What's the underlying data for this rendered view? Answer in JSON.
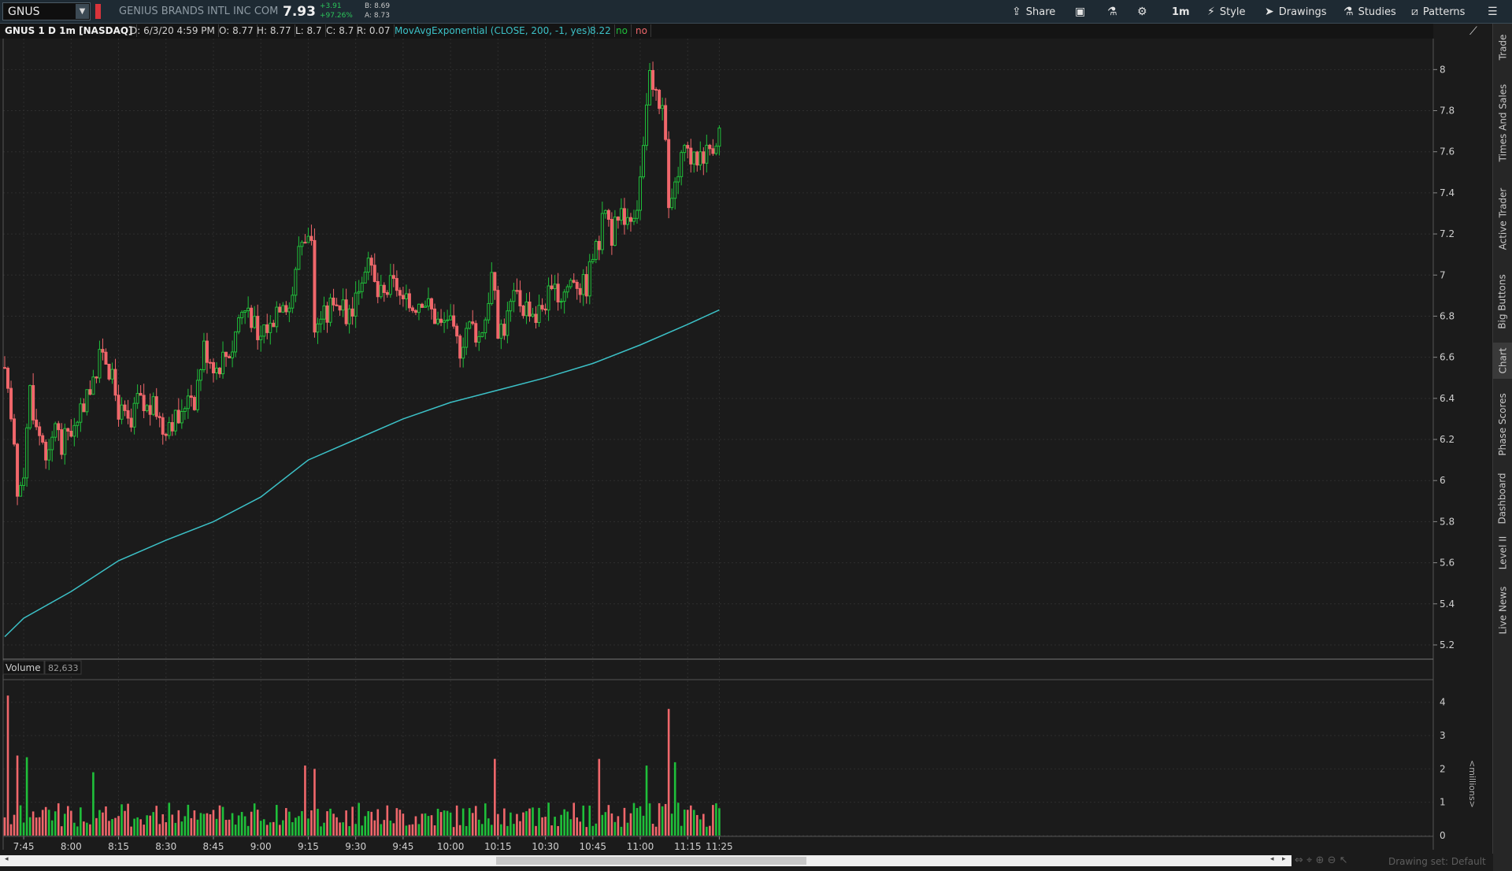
{
  "symbol": "GNUS",
  "company": "GENIUS BRANDS INTL INC COM",
  "last_price": "7.93",
  "net_change": "+3.91",
  "pct_change": "+97.26%",
  "bid": "B: 8.69",
  "ask": "A: 8.73",
  "toolbar": {
    "share": "Share",
    "aggregation": "1m",
    "style": "Style",
    "drawings": "Drawings",
    "studies": "Studies",
    "patterns": "Patterns"
  },
  "info": {
    "title": "GNUS 1 D 1m [NASDAQ]",
    "datetime": "D: 6/3/20 4:59 PM",
    "open": "O: 8.77",
    "high": "H: 8.77",
    "low": "L: 8.7",
    "close": "C: 8.7",
    "range": "R: 0.07",
    "study": "MovAvgExponential (CLOSE, 200, -1, yes)",
    "study_value": "8.22",
    "no1": "no",
    "no2": "no"
  },
  "volume_label": "Volume",
  "volume_value": "82,633",
  "volume_unit": "<millions>",
  "side_tabs": [
    "Trade",
    "Times And Sales",
    "Active Trader",
    "Big Buttons",
    "Chart",
    "Phase Scores",
    "Dashboard",
    "Level II",
    "Live News"
  ],
  "drawing_set": "Drawing set: Default",
  "colors": {
    "up": "#1fbf3a",
    "down": "#f0676b",
    "ema": "#3cc1c7",
    "background": "#1b1b1b"
  },
  "chart_data": {
    "type": "candlestick",
    "price_axis_ticks": [
      5.2,
      5.4,
      5.6,
      5.8,
      6,
      6.2,
      6.4,
      6.6,
      6.8,
      7,
      7.2,
      7.4,
      7.6,
      7.8,
      8
    ],
    "ylim": [
      5.15,
      8.12
    ],
    "volume_axis_ticks": [
      0,
      1,
      2,
      3,
      4
    ],
    "volume_ylim": [
      0,
      4.3
    ],
    "time_ticks": [
      "7:45",
      "8:00",
      "8:15",
      "8:30",
      "8:45",
      "9:00",
      "9:15",
      "9:30",
      "9:45",
      "10:00",
      "10:15",
      "10:30",
      "10:45",
      "11:00",
      "11:15",
      "11:25"
    ],
    "close_path": [
      [
        "7:39",
        6.5
      ],
      [
        "7:41",
        6.3
      ],
      [
        "7:43",
        5.95
      ],
      [
        "7:45",
        6.05
      ],
      [
        "7:47",
        6.45
      ],
      [
        "7:49",
        6.25
      ],
      [
        "7:51",
        6.2
      ],
      [
        "7:53",
        6.1
      ],
      [
        "7:55",
        6.3
      ],
      [
        "7:57",
        6.15
      ],
      [
        "7:59",
        6.25
      ],
      [
        "8:02",
        6.25
      ],
      [
        "8:05",
        6.45
      ],
      [
        "8:07",
        6.45
      ],
      [
        "8:10",
        6.65
      ],
      [
        "8:12",
        6.55
      ],
      [
        "8:15",
        6.35
      ],
      [
        "8:17",
        6.3
      ],
      [
        "8:19",
        6.25
      ],
      [
        "8:21",
        6.4
      ],
      [
        "8:23",
        6.35
      ],
      [
        "8:27",
        6.35
      ],
      [
        "8:29",
        6.25
      ],
      [
        "8:31",
        6.3
      ],
      [
        "8:33",
        6.3
      ],
      [
        "8:35",
        6.3
      ],
      [
        "8:37",
        6.45
      ],
      [
        "8:39",
        6.4
      ],
      [
        "8:42",
        6.65
      ],
      [
        "8:44",
        6.6
      ],
      [
        "8:46",
        6.55
      ],
      [
        "8:48",
        6.6
      ],
      [
        "8:51",
        6.65
      ],
      [
        "8:53",
        6.8
      ],
      [
        "8:56",
        6.85
      ],
      [
        "8:58",
        6.75
      ],
      [
        "8:59",
        6.65
      ],
      [
        "9:01",
        6.75
      ],
      [
        "9:03",
        6.75
      ],
      [
        "9:05",
        6.85
      ],
      [
        "9:07",
        6.9
      ],
      [
        "9:09",
        6.85
      ],
      [
        "9:11",
        7.0
      ],
      [
        "9:12",
        7.15
      ],
      [
        "9:14",
        7.2
      ],
      [
        "9:16",
        7.2
      ],
      [
        "9:17",
        6.75
      ],
      [
        "9:19",
        6.8
      ],
      [
        "9:21",
        6.8
      ],
      [
        "9:23",
        6.9
      ],
      [
        "9:25",
        6.85
      ],
      [
        "9:27",
        6.8
      ],
      [
        "9:29",
        6.85
      ],
      [
        "9:31",
        6.95
      ],
      [
        "9:33",
        7.05
      ],
      [
        "9:35",
        7.0
      ],
      [
        "9:37",
        6.9
      ],
      [
        "9:39",
        6.9
      ],
      [
        "9:41",
        6.95
      ],
      [
        "9:43",
        6.95
      ],
      [
        "9:45",
        6.85
      ],
      [
        "9:48",
        6.85
      ],
      [
        "9:51",
        6.9
      ],
      [
        "9:53",
        6.85
      ],
      [
        "9:55",
        6.8
      ],
      [
        "9:57",
        6.75
      ],
      [
        "9:59",
        6.8
      ],
      [
        "10:01",
        6.7
      ],
      [
        "10:03",
        6.65
      ],
      [
        "10:05",
        6.75
      ],
      [
        "10:07",
        6.75
      ],
      [
        "10:09",
        6.7
      ],
      [
        "10:11",
        6.8
      ],
      [
        "10:13",
        7.0
      ],
      [
        "10:15",
        6.75
      ],
      [
        "10:17",
        6.75
      ],
      [
        "10:19",
        6.85
      ],
      [
        "10:21",
        6.9
      ],
      [
        "10:23",
        6.85
      ],
      [
        "10:25",
        6.85
      ],
      [
        "10:27",
        6.8
      ],
      [
        "10:29",
        6.85
      ],
      [
        "10:31",
        6.9
      ],
      [
        "10:33",
        6.9
      ],
      [
        "10:35",
        6.9
      ],
      [
        "10:37",
        6.95
      ],
      [
        "10:39",
        7.0
      ],
      [
        "10:41",
        6.95
      ],
      [
        "10:43",
        6.95
      ],
      [
        "10:45",
        7.1
      ],
      [
        "10:47",
        7.15
      ],
      [
        "10:49",
        7.35
      ],
      [
        "10:51",
        7.2
      ],
      [
        "10:53",
        7.25
      ],
      [
        "10:55",
        7.3
      ],
      [
        "10:57",
        7.3
      ],
      [
        "10:59",
        7.35
      ],
      [
        "11:01",
        7.6
      ],
      [
        "11:03",
        7.95
      ],
      [
        "11:05",
        7.85
      ],
      [
        "11:07",
        7.85
      ],
      [
        "11:09",
        7.35
      ],
      [
        "11:11",
        7.4
      ],
      [
        "11:13",
        7.55
      ],
      [
        "11:15",
        7.6
      ],
      [
        "11:17",
        7.55
      ],
      [
        "11:19",
        7.6
      ],
      [
        "11:21",
        7.6
      ],
      [
        "11:23",
        7.65
      ],
      [
        "11:25",
        7.7
      ]
    ],
    "volume_spikes": [
      [
        "7:40",
        4.2
      ],
      [
        "7:43",
        2.4
      ],
      [
        "7:46",
        2.35
      ],
      [
        "8:07",
        1.9
      ],
      [
        "9:14",
        2.1
      ],
      [
        "9:17",
        2.0
      ],
      [
        "10:14",
        2.3
      ],
      [
        "10:47",
        2.3
      ],
      [
        "11:02",
        2.1
      ],
      [
        "11:09",
        3.8
      ],
      [
        "11:11",
        2.2
      ]
    ],
    "ema": {
      "label": "MovAvgExponential (CLOSE, 200, -1, yes)",
      "points": [
        [
          "7:39",
          5.24
        ],
        [
          "7:45",
          5.33
        ],
        [
          "8:00",
          5.46
        ],
        [
          "8:15",
          5.61
        ],
        [
          "8:30",
          5.71
        ],
        [
          "8:45",
          5.8
        ],
        [
          "9:00",
          5.92
        ],
        [
          "9:15",
          6.1
        ],
        [
          "9:30",
          6.2
        ],
        [
          "9:45",
          6.3
        ],
        [
          "10:00",
          6.38
        ],
        [
          "10:15",
          6.44
        ],
        [
          "10:30",
          6.5
        ],
        [
          "10:45",
          6.57
        ],
        [
          "11:00",
          6.66
        ],
        [
          "11:15",
          6.76
        ],
        [
          "11:25",
          6.83
        ]
      ]
    }
  }
}
